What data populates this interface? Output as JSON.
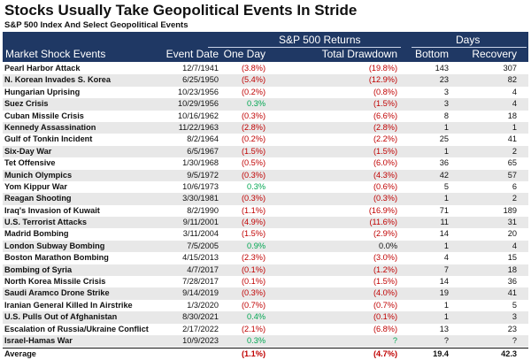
{
  "title": "Stocks Usually Take Geopolitical Events In Stride",
  "subtitle": "S&P 500 Index And Select Geopolitical Events",
  "header": {
    "group_returns": "S&P 500 Returns",
    "group_days": "Days",
    "col_event": "Market Shock Events",
    "col_date": "Event Date",
    "col_one_day": "One Day",
    "col_drawdown": "Total Drawdown",
    "col_bottom": "Bottom",
    "col_recovery": "Recovery"
  },
  "rows": [
    {
      "event": "Pearl Harbor Attack",
      "date": "12/7/1941",
      "one_day": "(3.8%)",
      "drawdown": "(19.8%)",
      "bottom": "143",
      "recovery": "307"
    },
    {
      "event": "N. Korean Invades S. Korea",
      "date": "6/25/1950",
      "one_day": "(5.4%)",
      "drawdown": "(12.9%)",
      "bottom": "23",
      "recovery": "82"
    },
    {
      "event": "Hungarian Uprising",
      "date": "10/23/1956",
      "one_day": "(0.2%)",
      "drawdown": "(0.8%)",
      "bottom": "3",
      "recovery": "4"
    },
    {
      "event": "Suez Crisis",
      "date": "10/29/1956",
      "one_day": "0.3%",
      "drawdown": "(1.5%)",
      "bottom": "3",
      "recovery": "4"
    },
    {
      "event": "Cuban Missile Crisis",
      "date": "10/16/1962",
      "one_day": "(0.3%)",
      "drawdown": "(6.6%)",
      "bottom": "8",
      "recovery": "18"
    },
    {
      "event": "Kennedy Assassination",
      "date": "11/22/1963",
      "one_day": "(2.8%)",
      "drawdown": "(2.8%)",
      "bottom": "1",
      "recovery": "1"
    },
    {
      "event": "Gulf of Tonkin Incident",
      "date": "8/2/1964",
      "one_day": "(0.2%)",
      "drawdown": "(2.2%)",
      "bottom": "25",
      "recovery": "41"
    },
    {
      "event": "Six-Day War",
      "date": "6/5/1967",
      "one_day": "(1.5%)",
      "drawdown": "(1.5%)",
      "bottom": "1",
      "recovery": "2"
    },
    {
      "event": "Tet Offensive",
      "date": "1/30/1968",
      "one_day": "(0.5%)",
      "drawdown": "(6.0%)",
      "bottom": "36",
      "recovery": "65"
    },
    {
      "event": "Munich Olympics",
      "date": "9/5/1972",
      "one_day": "(0.3%)",
      "drawdown": "(4.3%)",
      "bottom": "42",
      "recovery": "57"
    },
    {
      "event": "Yom Kippur War",
      "date": "10/6/1973",
      "one_day": "0.3%",
      "drawdown": "(0.6%)",
      "bottom": "5",
      "recovery": "6"
    },
    {
      "event": "Reagan Shooting",
      "date": "3/30/1981",
      "one_day": "(0.3%)",
      "drawdown": "(0.3%)",
      "bottom": "1",
      "recovery": "2"
    },
    {
      "event": "Iraq's Invasion of Kuwait",
      "date": "8/2/1990",
      "one_day": "(1.1%)",
      "drawdown": "(16.9%)",
      "bottom": "71",
      "recovery": "189"
    },
    {
      "event": "U.S. Terrorist Attacks",
      "date": "9/11/2001",
      "one_day": "(4.9%)",
      "drawdown": "(11.6%)",
      "bottom": "11",
      "recovery": "31"
    },
    {
      "event": "Madrid Bombing",
      "date": "3/11/2004",
      "one_day": "(1.5%)",
      "drawdown": "(2.9%)",
      "bottom": "14",
      "recovery": "20"
    },
    {
      "event": "London Subway Bombing",
      "date": "7/5/2005",
      "one_day": "0.9%",
      "drawdown": "0.0%",
      "bottom": "1",
      "recovery": "4"
    },
    {
      "event": "Boston Marathon Bombing",
      "date": "4/15/2013",
      "one_day": "(2.3%)",
      "drawdown": "(3.0%)",
      "bottom": "4",
      "recovery": "15"
    },
    {
      "event": "Bombing of Syria",
      "date": "4/7/2017",
      "one_day": "(0.1%)",
      "drawdown": "(1.2%)",
      "bottom": "7",
      "recovery": "18"
    },
    {
      "event": "North Korea Missile Crisis",
      "date": "7/28/2017",
      "one_day": "(0.1%)",
      "drawdown": "(1.5%)",
      "bottom": "14",
      "recovery": "36"
    },
    {
      "event": "Saudi Aramco Drone Strike",
      "date": "9/14/2019",
      "one_day": "(0.3%)",
      "drawdown": "(4.0%)",
      "bottom": "19",
      "recovery": "41"
    },
    {
      "event": "Iranian General Killed In Airstrike",
      "date": "1/3/2020",
      "one_day": "(0.7%)",
      "drawdown": "(0.7%)",
      "bottom": "1",
      "recovery": "5"
    },
    {
      "event": "U.S. Pulls Out of Afghanistan",
      "date": "8/30/2021",
      "one_day": "0.4%",
      "drawdown": "(0.1%)",
      "bottom": "1",
      "recovery": "3"
    },
    {
      "event": "Escalation of Russia/Ukraine Conflict",
      "date": "2/17/2022",
      "one_day": "(2.1%)",
      "drawdown": "(6.8%)",
      "bottom": "13",
      "recovery": "23"
    },
    {
      "event": "Israel-Hamas War",
      "date": "10/9/2023",
      "one_day": "0.3%",
      "drawdown": "?",
      "bottom": "?",
      "recovery": "?"
    }
  ],
  "average": {
    "label": "Average",
    "one_day": "(1.1%)",
    "drawdown": "(4.7%)",
    "bottom": "19.4",
    "recovery": "42.3"
  },
  "colors": {
    "header_bg": "#1f3864",
    "negative": "#c00000",
    "positive": "#00a651",
    "stripe": "#e8e8e8"
  }
}
